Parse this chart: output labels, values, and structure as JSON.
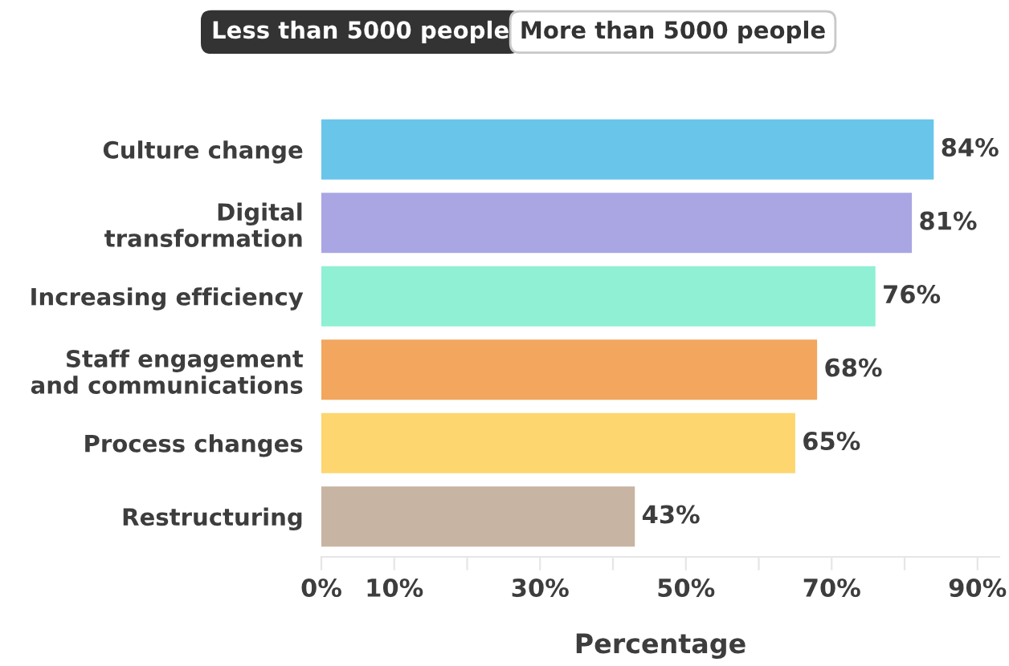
{
  "chart_data": {
    "type": "bar",
    "orientation": "horizontal",
    "xlabel": "Percentage",
    "categories": [
      "Culture change",
      "Digital\ntransformation",
      "Increasing efficiency",
      "Staff engagement\nand communications",
      "Process changes",
      "Restructuring"
    ],
    "values": [
      84,
      81,
      76,
      68,
      65,
      43
    ],
    "colors": [
      "#6ac5ea",
      "#a9a6e3",
      "#8ff0d4",
      "#f2a65e",
      "#fdd670",
      "#c8b4a2"
    ],
    "value_labels": [
      "84%",
      "81%",
      "76%",
      "68%",
      "65%",
      "43%"
    ],
    "xlim": [
      0,
      93
    ],
    "xticks": [
      {
        "value": 0,
        "label": "0%"
      },
      {
        "value": 10,
        "label": "10%"
      },
      {
        "value": 20,
        "label": null
      },
      {
        "value": 30,
        "label": "30%"
      },
      {
        "value": 40,
        "label": null
      },
      {
        "value": 50,
        "label": "50%"
      },
      {
        "value": 60,
        "label": null
      },
      {
        "value": 70,
        "label": "70%"
      },
      {
        "value": 80,
        "label": null
      },
      {
        "value": 90,
        "label": "90%"
      }
    ],
    "annotations": [
      "Less than 5000 people",
      "More than 5000 people"
    ],
    "grid": false,
    "legend": false
  }
}
